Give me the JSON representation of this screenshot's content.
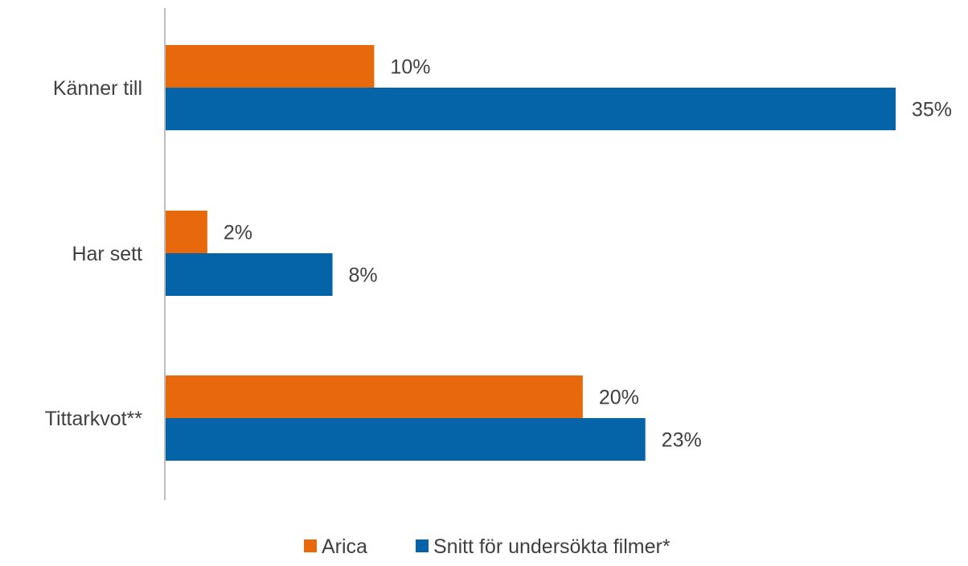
{
  "chart_data": {
    "type": "bar",
    "orientation": "horizontal",
    "categories": [
      "Känner till",
      "Har sett",
      "Tittarkvot**"
    ],
    "series": [
      {
        "name": "Arica",
        "values": [
          10,
          2,
          20
        ],
        "labels": [
          "10%",
          "2%",
          "20%"
        ],
        "color": "#E8690B"
      },
      {
        "name": "Snitt för undersökta filmer*",
        "values": [
          35,
          8,
          23
        ],
        "labels": [
          "35%",
          "8%",
          "23%"
        ],
        "color": "#0563A8"
      }
    ],
    "value_unit": "%",
    "xlim": [
      0,
      35
    ],
    "grid": false,
    "legend_position": "bottom",
    "axis_color": "#BFBFBF"
  }
}
